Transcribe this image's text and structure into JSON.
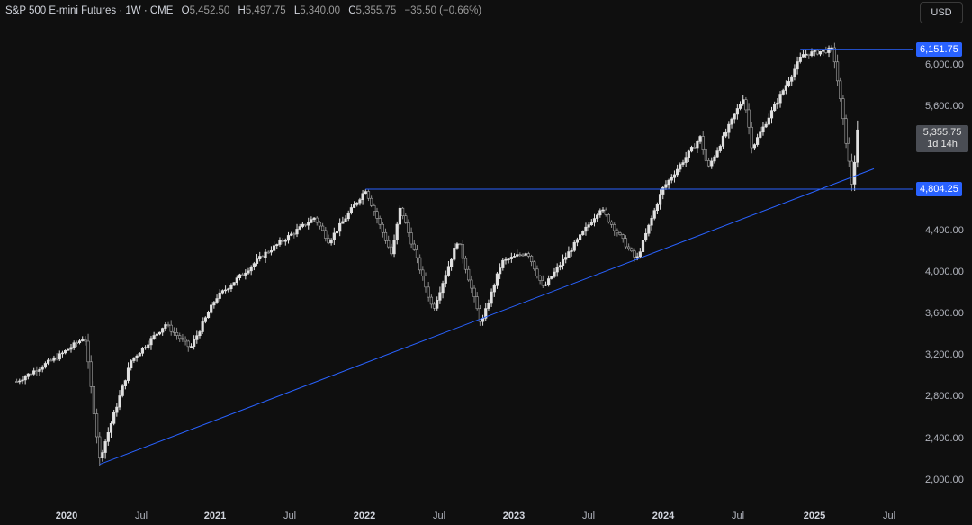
{
  "header": {
    "symbol": "S&P 500 E-mini Futures · 1W · CME",
    "open_label": "O",
    "open": "5,452.50",
    "high_label": "H",
    "high": "5,497.75",
    "low_label": "L",
    "low": "5,340.00",
    "close_label": "C",
    "close": "5,355.75",
    "change": "−35.50 (−0.66%)"
  },
  "currency_button": "USD",
  "price_axis": {
    "ticks": [
      "6,000.00",
      "5,600.00",
      "4,400.00",
      "4,000.00",
      "3,600.00",
      "3,200.00",
      "2,800.00",
      "2,400.00",
      "2,000.00"
    ],
    "top_marker": "6,151.75",
    "support_marker": "4,804.25",
    "current_price": "5,355.75",
    "countdown": "1d 14h"
  },
  "time_axis": {
    "labels": [
      {
        "text": "2020",
        "bold": true
      },
      {
        "text": "Jul",
        "bold": false
      },
      {
        "text": "2021",
        "bold": true
      },
      {
        "text": "Jul",
        "bold": false
      },
      {
        "text": "2022",
        "bold": true
      },
      {
        "text": "Jul",
        "bold": false
      },
      {
        "text": "2023",
        "bold": true
      },
      {
        "text": "Jul",
        "bold": false
      },
      {
        "text": "2024",
        "bold": true
      },
      {
        "text": "Jul",
        "bold": false
      },
      {
        "text": "2025",
        "bold": true
      },
      {
        "text": "Jul",
        "bold": false
      }
    ]
  },
  "colors": {
    "background": "#0f0f0f",
    "candle": "#e0e0e0",
    "trendline": "#2962ff",
    "marker_bg": "#2962ff",
    "current_bg": "#4a4d54"
  },
  "chart_data": {
    "type": "candlestick",
    "interval": "1W",
    "price_scale": "linear",
    "grid": false,
    "anchors": [
      {
        "date": "2019-09-01",
        "close": 2950
      },
      {
        "date": "2019-12-15",
        "close": 3200
      },
      {
        "date": "2020-02-15",
        "close": 3380
      },
      {
        "date": "2020-03-22",
        "close": 2200
      },
      {
        "date": "2020-06-07",
        "close": 3150
      },
      {
        "date": "2020-08-30",
        "close": 3500
      },
      {
        "date": "2020-10-30",
        "close": 3270
      },
      {
        "date": "2020-12-31",
        "close": 3750
      },
      {
        "date": "2021-04-30",
        "close": 4180
      },
      {
        "date": "2021-08-30",
        "close": 4530
      },
      {
        "date": "2021-10-04",
        "close": 4300
      },
      {
        "date": "2022-01-02",
        "close": 4800
      },
      {
        "date": "2022-03-07",
        "close": 4170
      },
      {
        "date": "2022-03-28",
        "close": 4630
      },
      {
        "date": "2022-06-16",
        "close": 3640
      },
      {
        "date": "2022-08-16",
        "close": 4320
      },
      {
        "date": "2022-10-12",
        "close": 3500
      },
      {
        "date": "2022-12-01",
        "close": 4100
      },
      {
        "date": "2023-02-02",
        "close": 4200
      },
      {
        "date": "2023-03-13",
        "close": 3850
      },
      {
        "date": "2023-07-31",
        "close": 4620
      },
      {
        "date": "2023-10-27",
        "close": 4120
      },
      {
        "date": "2023-12-29",
        "close": 4800
      },
      {
        "date": "2024-03-31",
        "close": 5300
      },
      {
        "date": "2024-04-19",
        "close": 5000
      },
      {
        "date": "2024-07-16",
        "close": 5700
      },
      {
        "date": "2024-08-05",
        "close": 5200
      },
      {
        "date": "2024-12-06",
        "close": 6100
      },
      {
        "date": "2025-02-19",
        "close": 6150
      },
      {
        "date": "2025-03-13",
        "close": 5550
      },
      {
        "date": "2025-04-07",
        "close": 4830
      },
      {
        "date": "2025-04-20",
        "close": 5355.75
      }
    ],
    "horizontal_lines": [
      {
        "price": 6151.75,
        "from": "2024-12-01"
      },
      {
        "price": 4804.25,
        "from": "2022-01-02"
      }
    ],
    "trendline": {
      "from": {
        "date": "2020-03-22",
        "price": 2150
      },
      "to": {
        "date": "2025-05-30",
        "price": 5000
      }
    }
  }
}
